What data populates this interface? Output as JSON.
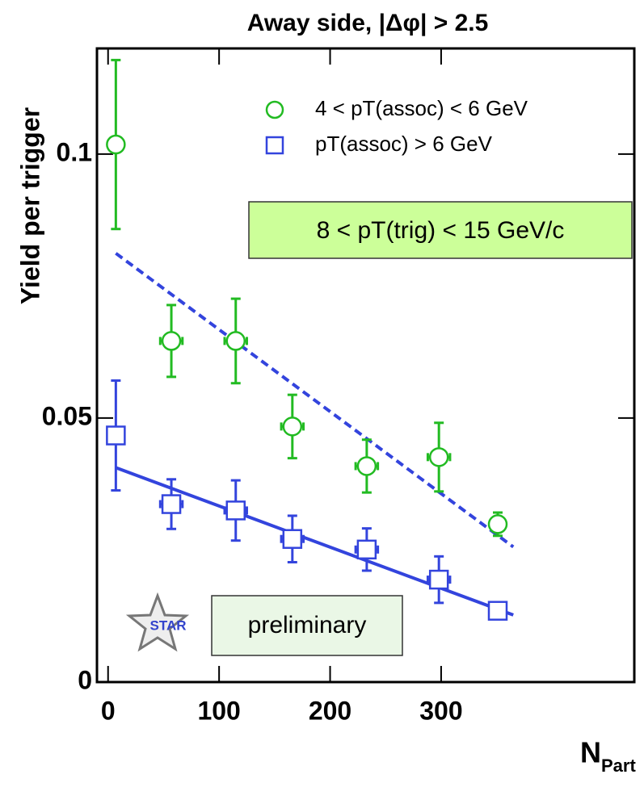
{
  "chart_data": {
    "type": "scatter",
    "title": "Away side, |Δφ| > 2.5",
    "y_label": "Yield per trigger",
    "x_label": "N",
    "x_label_sub": "Part",
    "xlim": [
      -10,
      474
    ],
    "ylim": [
      0,
      0.12
    ],
    "xticks": [
      0,
      100,
      200,
      300
    ],
    "yticks": [
      0,
      0.05,
      0.1
    ],
    "series": [
      {
        "name": "4 < pT(assoc) < 6 GeV",
        "color": "#22bb22",
        "marker": "circle",
        "x": [
          7,
          57,
          115,
          166,
          233,
          298,
          351
        ],
        "values": [
          0.1018,
          0.0646,
          0.0646,
          0.0484,
          0.0409,
          0.0426,
          0.0299
        ],
        "yerr": [
          0.016,
          0.0068,
          0.008,
          0.006,
          0.005,
          0.0065,
          0.0022
        ],
        "xerr": [
          0,
          10,
          10,
          10,
          10,
          10,
          0
        ]
      },
      {
        "name": "pT(assoc) > 6 GeV",
        "color": "#3344dd",
        "marker": "square",
        "x": [
          7,
          57,
          115,
          166,
          233,
          298,
          351
        ],
        "values": [
          0.0467,
          0.0337,
          0.0325,
          0.0271,
          0.0251,
          0.0194,
          0.0135
        ],
        "yerr": [
          0.0104,
          0.0047,
          0.0057,
          0.0044,
          0.004,
          0.0044,
          0
        ],
        "xerr": [
          0,
          10,
          10,
          10,
          10,
          10,
          0
        ]
      }
    ],
    "fits": [
      {
        "color": "#3344dd",
        "style": "dashed",
        "x": [
          7,
          365
        ],
        "values": [
          0.0812,
          0.0256
        ]
      },
      {
        "color": "#3344dd",
        "style": "solid",
        "x": [
          7,
          365
        ],
        "values": [
          0.0406,
          0.0127
        ]
      }
    ],
    "annotations": {
      "trigger": "8 < pT(trig) < 15 GeV/c",
      "preliminary": "preliminary",
      "logo": "STAR"
    }
  }
}
